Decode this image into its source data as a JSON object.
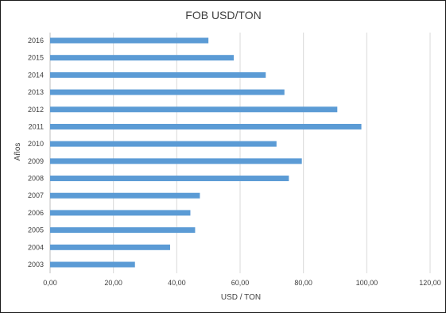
{
  "chart_data": {
    "type": "bar",
    "orientation": "horizontal",
    "title": "FOB USD/TON",
    "xlabel": "USD / TON",
    "ylabel": "Años",
    "categories": [
      "2003",
      "2004",
      "2005",
      "2006",
      "2007",
      "2008",
      "2009",
      "2010",
      "2011",
      "2012",
      "2013",
      "2014",
      "2015",
      "2016"
    ],
    "values": [
      26.8,
      37.9,
      45.8,
      44.3,
      47.3,
      75.4,
      79.5,
      71.5,
      98.3,
      90.7,
      74.0,
      68.1,
      58.0,
      50.0
    ],
    "xlim": [
      0,
      120
    ],
    "xticks": [
      0,
      20,
      40,
      60,
      80,
      100,
      120
    ],
    "xtick_labels": [
      "0,00",
      "20,00",
      "40,00",
      "60,00",
      "80,00",
      "100,00",
      "120,00"
    ],
    "grid": "vertical",
    "legend": "none",
    "bar_color": "#5b9bd5"
  }
}
